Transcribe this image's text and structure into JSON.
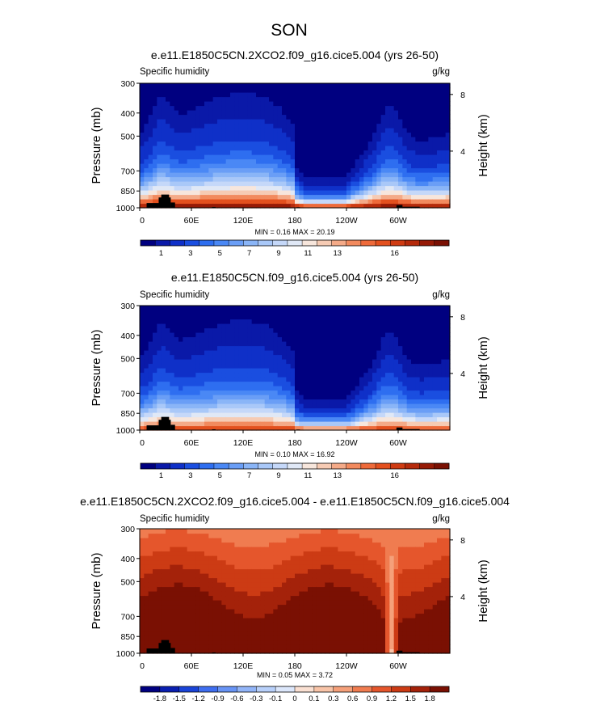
{
  "figure_title": "SON",
  "colors": {
    "cmap_abs": [
      "#000080",
      "#0a19a8",
      "#0f30c8",
      "#1a4ee0",
      "#2e6ef0",
      "#4a88f5",
      "#6a9ef6",
      "#8ab5f7",
      "#a9c8f8",
      "#c5d8f9",
      "#e0e8f6",
      "#f7e6dc",
      "#f6cbb4",
      "#f4aa88",
      "#f28a5e",
      "#ee6a3a",
      "#e3501e",
      "#cf3b12",
      "#b52a0b",
      "#961a06",
      "#7a1003"
    ],
    "cmap_diff": [
      "#000080",
      "#0a1fb0",
      "#1a44d8",
      "#3f6ef0",
      "#6894f5",
      "#92b5f8",
      "#b8d0fa",
      "#dce7fb",
      "#fae0d2",
      "#f8c4a8",
      "#f5a07a",
      "#f07c50",
      "#e5562c",
      "#cc3b14",
      "#a4220a",
      "#7a1003"
    ],
    "land": "#000000"
  },
  "chart_data": [
    {
      "type": "heatmap",
      "title": "e.e11.E1850C5CN.2XCO2.f09_g16.cice5.004 (yrs 26-50)",
      "left_label": "Specific humidity",
      "right_label": "g/kg",
      "ylabel": "Pressure (mb)",
      "ylabel_right": "Height (km)",
      "y_ticks": [
        "300",
        "400",
        "500",
        "700",
        "850",
        "1000"
      ],
      "y_tick_values": [
        300,
        400,
        500,
        700,
        850,
        1000
      ],
      "ylim": [
        1000,
        300
      ],
      "right_ticks": [
        "8",
        "4"
      ],
      "right_tick_km": [
        8,
        4
      ],
      "x_ticks": [
        "0",
        "60E",
        "120E",
        "180",
        "120W",
        "60W"
      ],
      "x_tick_lons": [
        0,
        60,
        120,
        180,
        240,
        300
      ],
      "xlim": [
        0,
        360
      ],
      "stats": "MIN =   0.16  MAX =  20.19",
      "colorbar_labels": [
        "1",
        "3",
        "5",
        "7",
        "9",
        "11",
        "13",
        "16"
      ],
      "levels": [
        0.5,
        1,
        2,
        3,
        4,
        5,
        6,
        7,
        8,
        9,
        10,
        11,
        12,
        13,
        14,
        15,
        16,
        17,
        18,
        19
      ],
      "surface_scale": 20.2,
      "kind": "abs"
    },
    {
      "type": "heatmap",
      "title": "e.e11.E1850C5CN.f09_g16.cice5.004 (yrs 26-50)",
      "left_label": "Specific humidity",
      "right_label": "g/kg",
      "ylabel": "Pressure (mb)",
      "ylabel_right": "Height (km)",
      "y_ticks": [
        "300",
        "400",
        "500",
        "700",
        "850",
        "1000"
      ],
      "y_tick_values": [
        300,
        400,
        500,
        700,
        850,
        1000
      ],
      "ylim": [
        1000,
        300
      ],
      "right_ticks": [
        "8",
        "4"
      ],
      "right_tick_km": [
        8,
        4
      ],
      "x_ticks": [
        "0",
        "60E",
        "120E",
        "180",
        "120W",
        "60W"
      ],
      "x_tick_lons": [
        0,
        60,
        120,
        180,
        240,
        300
      ],
      "xlim": [
        0,
        360
      ],
      "stats": "MIN =   0.10  MAX =  16.92",
      "colorbar_labels": [
        "1",
        "3",
        "5",
        "7",
        "9",
        "11",
        "13",
        "16"
      ],
      "levels": [
        0.5,
        1,
        2,
        3,
        4,
        5,
        6,
        7,
        8,
        9,
        10,
        11,
        12,
        13,
        14,
        15,
        16,
        17,
        18,
        19
      ],
      "surface_scale": 16.9,
      "kind": "abs"
    },
    {
      "type": "heatmap",
      "title": "e.e11.E1850C5CN.2XCO2.f09_g16.cice5.004 - e.e11.E1850C5CN.f09_g16.cice5.004",
      "left_label": "Specific humidity",
      "right_label": "g/kg",
      "ylabel": "Pressure (mb)",
      "ylabel_right": "Height (km)",
      "y_ticks": [
        "300",
        "400",
        "500",
        "700",
        "850",
        "1000"
      ],
      "y_tick_values": [
        300,
        400,
        500,
        700,
        850,
        1000
      ],
      "ylim": [
        1000,
        300
      ],
      "right_ticks": [
        "8",
        "4"
      ],
      "right_tick_km": [
        8,
        4
      ],
      "x_ticks": [
        "0",
        "60E",
        "120E",
        "180",
        "120W",
        "60W"
      ],
      "x_tick_lons": [
        0,
        60,
        120,
        180,
        240,
        300
      ],
      "xlim": [
        0,
        360
      ],
      "stats": "MIN =   0.05  MAX =   3.72",
      "colorbar_labels": [
        "-1.8",
        "-1.5",
        "-1.2",
        "-0.9",
        "-0.6",
        "-0.3",
        "-0.1",
        "0",
        "0.1",
        "0.3",
        "0.6",
        "0.9",
        "1.2",
        "1.5",
        "1.8"
      ],
      "levels": [
        -1.8,
        -1.5,
        -1.2,
        -0.9,
        -0.6,
        -0.3,
        -0.1,
        0,
        0.1,
        0.3,
        0.6,
        0.9,
        1.2,
        1.5,
        1.8
      ],
      "surface_scale": 3.72,
      "kind": "diff"
    }
  ]
}
